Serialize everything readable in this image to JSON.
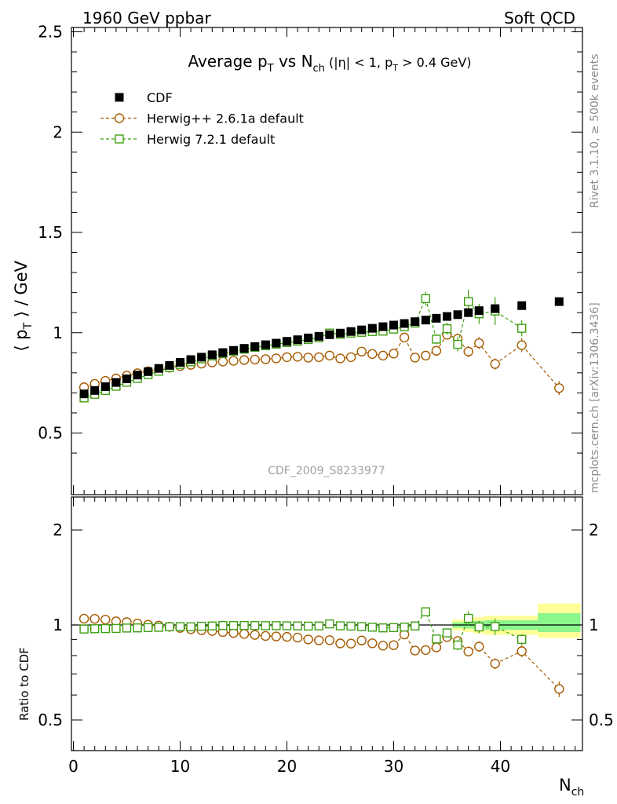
{
  "header": {
    "left": "1960 GeV ppbar",
    "right": "Soft QCD"
  },
  "side": {
    "rivet": "Rivet 3.1.10, ≥ 500k events",
    "mcplots": "mcplots.cern.ch [arXiv:1306.3436]"
  },
  "watermark": "CDF_2009_S8233977",
  "colors": {
    "cdf": "#000000",
    "herwigpp": "#a65b00",
    "herwig7": "#3e9f12",
    "band_outer": "#ffff99",
    "band_inner": "#8cf58c"
  },
  "chart_data": [
    {
      "type": "scatter",
      "title": "Average pT vs Nch (|η| < 1, pT > 0.4 GeV)",
      "ylabel": "⟨ pT ⟩ / GeV",
      "xlabel": "Nch",
      "xlim": [
        0,
        48
      ],
      "ylim": [
        0.2,
        2.55
      ],
      "y_ticks": [
        "0.5",
        "1",
        "1.5",
        "2",
        "2.5"
      ],
      "x_ticks": [
        "0",
        "10",
        "20",
        "30",
        "40"
      ],
      "legend_position": "top-left",
      "series": [
        {
          "name": "CDF",
          "marker": "filled-square",
          "points": [
            [
              1,
              0.695
            ],
            [
              2,
              0.712
            ],
            [
              3,
              0.731
            ],
            [
              4,
              0.752
            ],
            [
              5,
              0.77
            ],
            [
              6,
              0.789
            ],
            [
              7,
              0.806
            ],
            [
              8,
              0.822
            ],
            [
              9,
              0.837
            ],
            [
              10,
              0.852
            ],
            [
              11,
              0.866
            ],
            [
              12,
              0.878
            ],
            [
              13,
              0.89
            ],
            [
              14,
              0.901
            ],
            [
              15,
              0.912
            ],
            [
              16,
              0.922
            ],
            [
              17,
              0.931
            ],
            [
              18,
              0.94
            ],
            [
              19,
              0.948
            ],
            [
              20,
              0.957
            ],
            [
              21,
              0.965
            ],
            [
              22,
              0.974
            ],
            [
              23,
              0.982
            ],
            [
              24,
              0.99
            ],
            [
              25,
              0.998
            ],
            [
              26,
              1.006
            ],
            [
              27,
              1.014
            ],
            [
              28,
              1.022
            ],
            [
              29,
              1.03
            ],
            [
              30,
              1.038
            ],
            [
              31,
              1.046
            ],
            [
              32,
              1.055
            ],
            [
              33,
              1.063
            ],
            [
              34,
              1.072
            ],
            [
              35,
              1.081
            ],
            [
              36,
              1.09
            ],
            [
              37,
              1.1
            ],
            [
              38,
              1.11
            ],
            [
              39.5,
              1.12
            ],
            [
              42,
              1.135
            ],
            [
              45.5,
              1.155
            ]
          ]
        },
        {
          "name": "Herwig++ 2.6.1a default",
          "marker": "open-circle",
          "points": [
            [
              1,
              0.728
            ],
            [
              2,
              0.745
            ],
            [
              3,
              0.76
            ],
            [
              4,
              0.772
            ],
            [
              5,
              0.786
            ],
            [
              6,
              0.798
            ],
            [
              7,
              0.808
            ],
            [
              8,
              0.818
            ],
            [
              9,
              0.826
            ],
            [
              10,
              0.834
            ],
            [
              11,
              0.84
            ],
            [
              12,
              0.846
            ],
            [
              13,
              0.852
            ],
            [
              14,
              0.856
            ],
            [
              15,
              0.86
            ],
            [
              16,
              0.864
            ],
            [
              17,
              0.866
            ],
            [
              18,
              0.868
            ],
            [
              19,
              0.872
            ],
            [
              20,
              0.878
            ],
            [
              21,
              0.88
            ],
            [
              22,
              0.876
            ],
            [
              23,
              0.878
            ],
            [
              24,
              0.886
            ],
            [
              25,
              0.872
            ],
            [
              26,
              0.878
            ],
            [
              27,
              0.906
            ],
            [
              28,
              0.894
            ],
            [
              29,
              0.886
            ],
            [
              30,
              0.896
            ],
            [
              31,
              0.976
            ],
            [
              32,
              0.876
            ],
            [
              33,
              0.886
            ],
            [
              34,
              0.91
            ],
            [
              35,
              0.99
            ],
            [
              36,
              0.97
            ],
            [
              37,
              0.906
            ],
            [
              38,
              0.948
            ],
            [
              39.5,
              0.844
            ],
            [
              42,
              0.938
            ],
            [
              45.5,
              0.724
            ]
          ],
          "errors": [
            0.004,
            0.004,
            0.004,
            0.004,
            0.004,
            0.004,
            0.004,
            0.004,
            0.004,
            0.004,
            0.005,
            0.005,
            0.005,
            0.005,
            0.005,
            0.006,
            0.006,
            0.006,
            0.007,
            0.007,
            0.008,
            0.008,
            0.009,
            0.01,
            0.01,
            0.011,
            0.012,
            0.013,
            0.014,
            0.015,
            0.016,
            0.018,
            0.02,
            0.022,
            0.024,
            0.026,
            0.028,
            0.03,
            0.028,
            0.035,
            0.035
          ]
        },
        {
          "name": "Herwig 7.2.1 default",
          "marker": "open-square",
          "points": [
            [
              1,
              0.675
            ],
            [
              2,
              0.693
            ],
            [
              3,
              0.712
            ],
            [
              4,
              0.733
            ],
            [
              5,
              0.753
            ],
            [
              6,
              0.772
            ],
            [
              7,
              0.791
            ],
            [
              8,
              0.808
            ],
            [
              9,
              0.826
            ],
            [
              10,
              0.842
            ],
            [
              11,
              0.855
            ],
            [
              12,
              0.87
            ],
            [
              13,
              0.884
            ],
            [
              14,
              0.897
            ],
            [
              15,
              0.908
            ],
            [
              16,
              0.918
            ],
            [
              17,
              0.927
            ],
            [
              18,
              0.935
            ],
            [
              19,
              0.943
            ],
            [
              20,
              0.951
            ],
            [
              21,
              0.958
            ],
            [
              22,
              0.966
            ],
            [
              23,
              0.975
            ],
            [
              24,
              0.998
            ],
            [
              25,
              0.992
            ],
            [
              26,
              0.998
            ],
            [
              27,
              1.002
            ],
            [
              28,
              1.006
            ],
            [
              29,
              1.008
            ],
            [
              30,
              1.018
            ],
            [
              31,
              1.03
            ],
            [
              32,
              1.048
            ],
            [
              33,
              1.17
            ],
            [
              34,
              0.968
            ],
            [
              35,
              1.02
            ],
            [
              36,
              0.942
            ],
            [
              37,
              1.155
            ],
            [
              38,
              1.094
            ],
            [
              39.5,
              1.108
            ],
            [
              42,
              1.022
            ]
          ],
          "errors": [
            0.004,
            0.004,
            0.004,
            0.004,
            0.004,
            0.004,
            0.004,
            0.004,
            0.004,
            0.004,
            0.005,
            0.005,
            0.005,
            0.005,
            0.005,
            0.006,
            0.006,
            0.006,
            0.007,
            0.007,
            0.008,
            0.008,
            0.009,
            0.01,
            0.01,
            0.011,
            0.012,
            0.013,
            0.014,
            0.015,
            0.016,
            0.018,
            0.035,
            0.025,
            0.03,
            0.035,
            0.06,
            0.05,
            0.07,
            0.04
          ]
        }
      ]
    },
    {
      "type": "scatter",
      "title": "",
      "ylabel": "Ratio to CDF",
      "xlabel": "Nch",
      "xlim": [
        0,
        48
      ],
      "ylim": [
        0.345,
        2.4
      ],
      "y_ticks": [
        "0.5",
        "1",
        "2"
      ],
      "x_ticks": [
        "0",
        "10",
        "20",
        "30",
        "40"
      ],
      "reference_line": 1,
      "uncertainty_band": {
        "edges": [
          35.5,
          36.5,
          37.5,
          38.5,
          43.5,
          47.5
        ],
        "outer": [
          [
            0.96,
            1.04
          ],
          [
            0.95,
            1.05
          ],
          [
            0.94,
            1.06
          ],
          [
            0.93,
            1.07
          ],
          [
            0.91,
            1.17
          ]
        ],
        "inner": [
          [
            0.98,
            1.02
          ],
          [
            0.975,
            1.025
          ],
          [
            0.97,
            1.03
          ],
          [
            0.965,
            1.035
          ],
          [
            0.95,
            1.09
          ]
        ]
      },
      "series": [
        {
          "name": "Herwig++ 2.6.1a default",
          "marker": "open-circle",
          "points": [
            [
              1,
              1.047
            ],
            [
              2,
              1.046
            ],
            [
              3,
              1.04
            ],
            [
              4,
              1.027
            ],
            [
              5,
              1.021
            ],
            [
              6,
              1.011
            ],
            [
              7,
              1.002
            ],
            [
              8,
              0.995
            ],
            [
              9,
              0.987
            ],
            [
              10,
              0.979
            ],
            [
              11,
              0.97
            ],
            [
              12,
              0.963
            ],
            [
              13,
              0.957
            ],
            [
              14,
              0.95
            ],
            [
              15,
              0.943
            ],
            [
              16,
              0.937
            ],
            [
              17,
              0.93
            ],
            [
              18,
              0.923
            ],
            [
              19,
              0.92
            ],
            [
              20,
              0.917
            ],
            [
              21,
              0.912
            ],
            [
              22,
              0.9
            ],
            [
              23,
              0.894
            ],
            [
              24,
              0.895
            ],
            [
              25,
              0.874
            ],
            [
              26,
              0.873
            ],
            [
              27,
              0.893
            ],
            [
              28,
              0.875
            ],
            [
              29,
              0.86
            ],
            [
              30,
              0.863
            ],
            [
              31,
              0.933
            ],
            [
              32,
              0.83
            ],
            [
              33,
              0.833
            ],
            [
              34,
              0.849
            ],
            [
              35,
              0.916
            ],
            [
              36,
              0.89
            ],
            [
              37,
              0.824
            ],
            [
              38,
              0.854
            ],
            [
              39.5,
              0.754
            ],
            [
              42,
              0.826
            ],
            [
              45.5,
              0.627
            ]
          ],
          "errors": [
            0.005,
            0.005,
            0.005,
            0.005,
            0.005,
            0.005,
            0.005,
            0.005,
            0.005,
            0.005,
            0.006,
            0.006,
            0.006,
            0.006,
            0.006,
            0.007,
            0.007,
            0.007,
            0.008,
            0.008,
            0.009,
            0.009,
            0.01,
            0.011,
            0.011,
            0.012,
            0.013,
            0.014,
            0.015,
            0.016,
            0.017,
            0.019,
            0.021,
            0.023,
            0.025,
            0.027,
            0.03,
            0.032,
            0.03,
            0.036,
            0.036
          ]
        },
        {
          "name": "Herwig 7.2.1 default",
          "marker": "open-square",
          "points": [
            [
              1,
              0.971
            ],
            [
              2,
              0.973
            ],
            [
              3,
              0.974
            ],
            [
              4,
              0.975
            ],
            [
              5,
              0.978
            ],
            [
              6,
              0.979
            ],
            [
              7,
              0.981
            ],
            [
              8,
              0.983
            ],
            [
              9,
              0.987
            ],
            [
              10,
              0.988
            ],
            [
              11,
              0.987
            ],
            [
              12,
              0.991
            ],
            [
              13,
              0.993
            ],
            [
              14,
              0.996
            ],
            [
              15,
              0.996
            ],
            [
              16,
              0.996
            ],
            [
              17,
              0.996
            ],
            [
              18,
              0.995
            ],
            [
              19,
              0.995
            ],
            [
              20,
              0.994
            ],
            [
              21,
              0.993
            ],
            [
              22,
              0.992
            ],
            [
              23,
              0.993
            ],
            [
              24,
              1.008
            ],
            [
              25,
              0.994
            ],
            [
              26,
              0.992
            ],
            [
              27,
              0.988
            ],
            [
              28,
              0.984
            ],
            [
              29,
              0.979
            ],
            [
              30,
              0.981
            ],
            [
              31,
              0.985
            ],
            [
              32,
              0.993
            ],
            [
              33,
              1.101
            ],
            [
              34,
              0.903
            ],
            [
              35,
              0.944
            ],
            [
              36,
              0.864
            ],
            [
              37,
              1.05
            ],
            [
              38,
              0.986
            ],
            [
              39.5,
              0.989
            ],
            [
              42,
              0.9
            ]
          ],
          "errors": [
            0.005,
            0.005,
            0.005,
            0.005,
            0.005,
            0.005,
            0.005,
            0.005,
            0.005,
            0.005,
            0.006,
            0.006,
            0.006,
            0.006,
            0.006,
            0.007,
            0.007,
            0.007,
            0.008,
            0.008,
            0.009,
            0.009,
            0.01,
            0.011,
            0.011,
            0.012,
            0.013,
            0.014,
            0.015,
            0.016,
            0.017,
            0.019,
            0.033,
            0.024,
            0.028,
            0.032,
            0.055,
            0.045,
            0.06,
            0.035
          ]
        }
      ]
    }
  ]
}
